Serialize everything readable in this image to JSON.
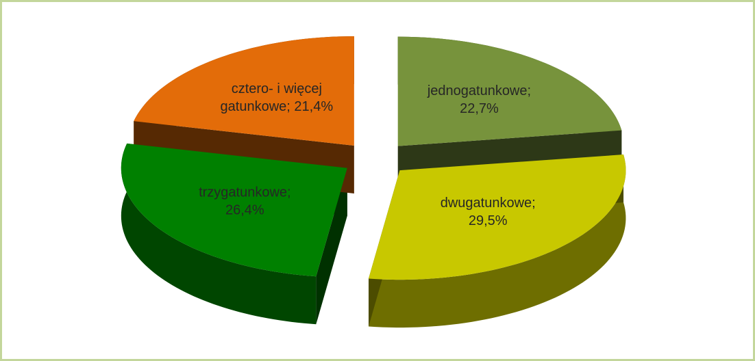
{
  "chart_data": {
    "type": "pie",
    "categories": [
      "jednogatunkowe;",
      "dwugatunkowe;",
      "trzygatunkowe;",
      "cztero- i więcej gatunkowe;"
    ],
    "values": [
      22.7,
      29.5,
      26.4,
      21.4
    ],
    "value_labels": [
      "22,7%",
      "29,5%",
      "26,4%",
      "21,4%"
    ],
    "colors": [
      "#77933c",
      "#c8c800",
      "#008000",
      "#e36c09"
    ]
  }
}
